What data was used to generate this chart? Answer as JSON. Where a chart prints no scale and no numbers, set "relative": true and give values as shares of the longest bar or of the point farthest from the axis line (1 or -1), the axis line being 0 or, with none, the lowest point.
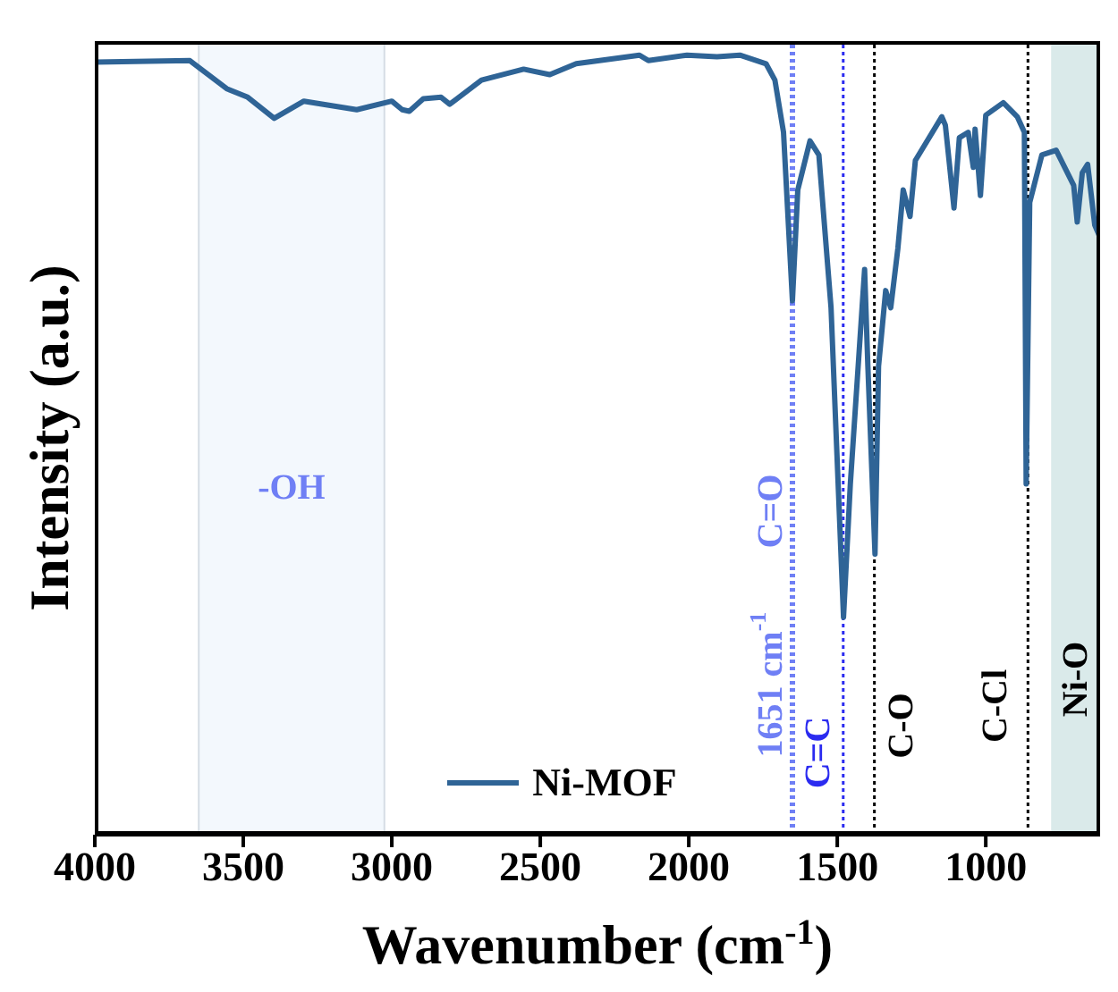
{
  "chart_data": {
    "type": "line",
    "relative": true,
    "xlabel": "Wavenumber (cm$^{-1}$)",
    "ylabel": "Intensity (a.u.)",
    "xlim": [
      4000,
      615
    ],
    "xticks": [
      4000,
      3500,
      3000,
      2500,
      2000,
      1500,
      1000
    ],
    "legend": "bottom",
    "marker": "none",
    "line_style": "solid",
    "x": [
      4000,
      3680,
      3556,
      3485,
      3396,
      3296,
      3118,
      3000,
      2965,
      2941,
      2894,
      2834,
      2805,
      2698,
      2556,
      2468,
      2379,
      2166,
      2136,
      2006,
      1905,
      1828,
      1740,
      1710,
      1681,
      1651,
      1633,
      1592,
      1562,
      1521,
      1479,
      1456,
      1408,
      1397,
      1373,
      1361,
      1337,
      1320,
      1296,
      1278,
      1255,
      1237,
      1148,
      1136,
      1107,
      1089,
      1059,
      1042,
      1036,
      1018,
      1000,
      941,
      894,
      870,
      864,
      852,
      811,
      763,
      704,
      692,
      675,
      657,
      633,
      615
    ],
    "series": [
      {
        "name": "Ni-MOF",
        "color": "#2f6496",
        "values": [
          0.991,
          0.993,
          0.957,
          0.946,
          0.919,
          0.941,
          0.93,
          0.941,
          0.93,
          0.928,
          0.944,
          0.946,
          0.937,
          0.968,
          0.982,
          0.975,
          0.989,
          1.0,
          0.993,
          1.0,
          0.998,
          1.0,
          0.989,
          0.968,
          0.901,
          0.685,
          0.827,
          0.89,
          0.872,
          0.676,
          0.279,
          0.45,
          0.725,
          0.601,
          0.36,
          0.601,
          0.698,
          0.676,
          0.752,
          0.827,
          0.793,
          0.865,
          0.921,
          0.91,
          0.804,
          0.894,
          0.901,
          0.856,
          0.905,
          0.82,
          0.923,
          0.939,
          0.921,
          0.901,
          0.45,
          0.811,
          0.872,
          0.878,
          0.833,
          0.786,
          0.849,
          0.86,
          0.782,
          0.766
        ]
      }
    ],
    "ref_lines": [
      {
        "axis": "x",
        "value": 1651,
        "label": "C=O",
        "color": "#6f7ff5",
        "line_style": "dotted"
      },
      {
        "axis": "x",
        "value": 1480,
        "label": "C=C",
        "color": "#2b2bf0",
        "line_style": "dotted"
      },
      {
        "axis": "x",
        "value": 1375,
        "label": "C-O",
        "color": "#000000",
        "line_style": "dotted"
      },
      {
        "axis": "x",
        "value": 858,
        "label": "C-Cl",
        "color": "#000000",
        "line_style": "dotted"
      }
    ],
    "bands": [
      {
        "axis": "x",
        "from": 3650,
        "to": 3025,
        "label": "-OH",
        "color": "#f3f8fd"
      },
      {
        "axis": "x",
        "from": 780,
        "to": 615,
        "label": "Ni-O",
        "color": "#daeaea"
      }
    ],
    "annotations": [
      "1651 cm$^{-1}$"
    ]
  }
}
